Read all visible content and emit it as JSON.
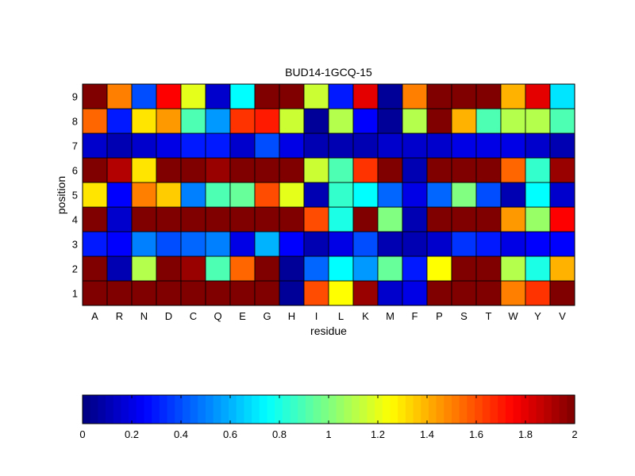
{
  "chart_data": {
    "type": "heatmap",
    "title": "BUD14-1GCQ-15",
    "xlabel": "residue",
    "ylabel": "position",
    "x_categories": [
      "A",
      "R",
      "N",
      "D",
      "C",
      "Q",
      "E",
      "G",
      "H",
      "I",
      "L",
      "K",
      "M",
      "F",
      "P",
      "S",
      "T",
      "W",
      "Y",
      "V"
    ],
    "y_categories": [
      "1",
      "2",
      "3",
      "4",
      "5",
      "6",
      "7",
      "8",
      "9"
    ],
    "colormap": "jet",
    "clim": [
      0,
      2
    ],
    "colorbar": {
      "orientation": "horizontal",
      "placement": "bottom",
      "ticks": [
        0,
        0.2,
        0.4,
        0.6,
        0.8,
        1,
        1.2,
        1.4,
        1.6,
        1.8,
        2
      ],
      "tick_labels": [
        "0",
        "0.2",
        "0.4",
        "0.6",
        "0.8",
        "1",
        "1.2",
        "1.4",
        "1.6",
        "1.8",
        "2"
      ]
    },
    "values": [
      [
        2.0,
        2.0,
        2.0,
        2.0,
        2.0,
        2.0,
        2.0,
        2.0,
        0.05,
        1.6,
        1.25,
        1.95,
        0.15,
        0.2,
        2.0,
        2.0,
        2.0,
        1.5,
        1.65,
        2.0
      ],
      [
        2.0,
        0.1,
        1.1,
        2.0,
        1.95,
        0.9,
        1.55,
        2.0,
        0.05,
        0.45,
        0.75,
        0.55,
        0.95,
        0.3,
        1.25,
        2.0,
        2.0,
        1.1,
        0.8,
        1.4
      ],
      [
        0.3,
        0.25,
        0.5,
        0.4,
        0.45,
        0.5,
        0.2,
        0.6,
        0.25,
        0.1,
        0.2,
        0.4,
        0.1,
        0.1,
        0.15,
        0.35,
        0.3,
        0.2,
        0.25,
        0.25
      ],
      [
        2.0,
        0.15,
        2.0,
        2.0,
        2.0,
        2.0,
        2.0,
        2.0,
        2.0,
        1.6,
        0.8,
        2.0,
        1.0,
        0.1,
        2.0,
        2.0,
        2.0,
        1.45,
        1.05,
        1.75
      ],
      [
        1.3,
        0.25,
        1.5,
        1.35,
        0.5,
        0.9,
        0.95,
        1.6,
        1.2,
        0.1,
        0.85,
        0.75,
        0.45,
        0.2,
        0.45,
        1.0,
        0.4,
        0.1,
        0.75,
        0.15
      ],
      [
        2.0,
        1.9,
        1.3,
        2.0,
        2.0,
        1.95,
        2.0,
        2.0,
        2.0,
        1.15,
        0.9,
        1.65,
        2.0,
        0.1,
        2.0,
        2.0,
        2.0,
        1.55,
        0.85,
        1.95
      ],
      [
        0.15,
        0.1,
        0.15,
        0.2,
        0.3,
        0.3,
        0.15,
        0.4,
        0.2,
        0.1,
        0.1,
        0.1,
        0.15,
        0.15,
        0.15,
        0.2,
        0.2,
        0.2,
        0.15,
        0.1
      ],
      [
        1.55,
        0.3,
        1.3,
        1.45,
        0.9,
        0.55,
        1.65,
        1.7,
        1.15,
        0.05,
        1.1,
        0.25,
        0.05,
        1.1,
        2.0,
        1.4,
        0.9,
        1.1,
        1.1,
        0.9
      ],
      [
        2.0,
        1.5,
        0.4,
        1.75,
        1.2,
        0.15,
        0.75,
        2.0,
        2.0,
        1.15,
        0.3,
        1.8,
        0.05,
        1.5,
        2.0,
        2.0,
        2.0,
        1.4,
        1.8,
        0.7
      ]
    ]
  }
}
